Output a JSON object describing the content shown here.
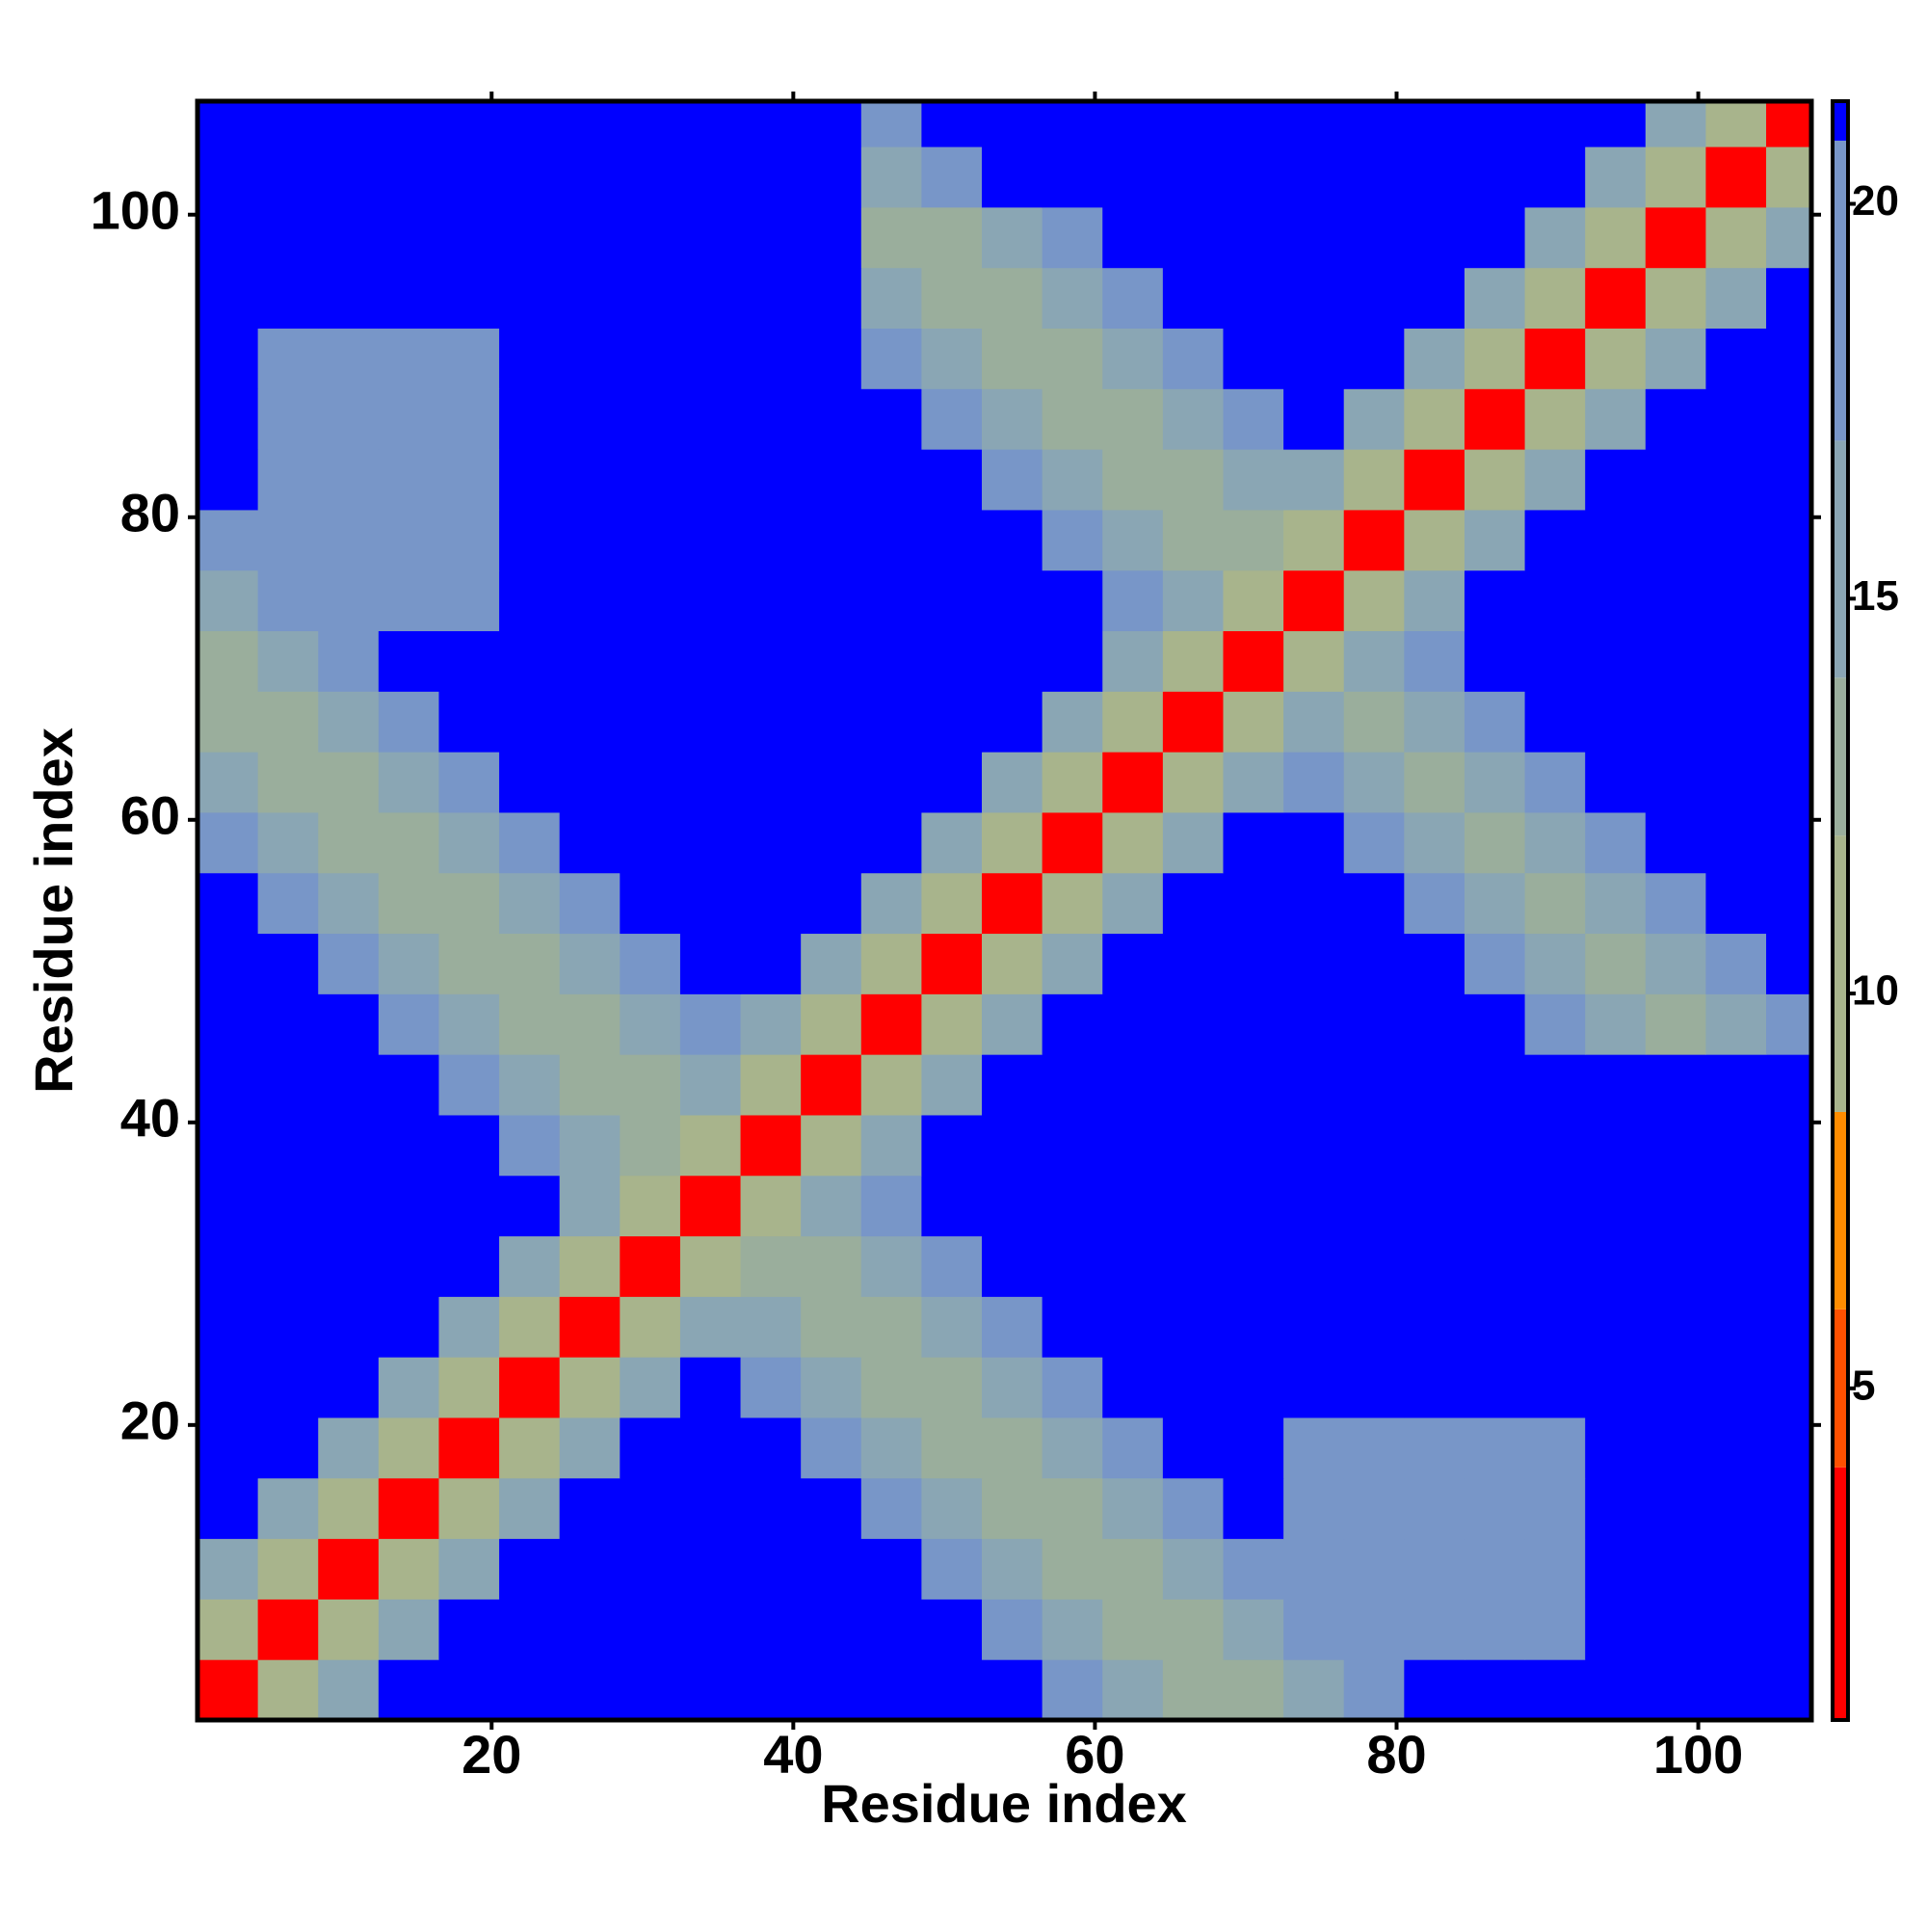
{
  "chart_data": {
    "type": "heatmap",
    "x_label": "Residue index",
    "y_label": "Residue index",
    "x": [
      2.5,
      6.5,
      10.5,
      14.5,
      18.5,
      22.5,
      26.5,
      30.5,
      34.5,
      38.5,
      42.5,
      46.5,
      50.5,
      54.5,
      58.5,
      62.5,
      66.5,
      70.5,
      74.5,
      78.5,
      82.5,
      86.5,
      90.5,
      94.5,
      98.5,
      102.5,
      106.5
    ],
    "y": [
      2.5,
      6.5,
      10.5,
      14.5,
      18.5,
      22.5,
      26.5,
      30.5,
      34.5,
      38.5,
      42.5,
      46.5,
      50.5,
      54.5,
      58.5,
      62.5,
      66.5,
      70.5,
      74.5,
      78.5,
      82.5,
      86.5,
      90.5,
      94.5,
      98.5,
      102.5,
      106.5
    ],
    "z": [
      [
        2,
        9,
        15,
        22,
        22,
        22,
        22,
        22,
        22,
        22,
        22,
        22,
        22,
        22,
        18,
        15,
        12,
        12,
        15,
        18,
        22,
        22,
        22,
        22,
        22,
        22,
        22
      ],
      [
        9,
        2,
        9,
        15,
        22,
        22,
        22,
        22,
        22,
        22,
        22,
        22,
        22,
        18,
        15,
        12,
        12,
        15,
        18,
        19,
        19,
        19,
        19,
        22,
        22,
        22,
        22
      ],
      [
        15,
        9,
        2,
        9,
        15,
        22,
        22,
        22,
        22,
        22,
        22,
        22,
        18,
        15,
        12,
        12,
        15,
        18,
        19,
        19,
        19,
        19,
        19,
        22,
        22,
        22,
        22
      ],
      [
        22,
        15,
        9,
        2,
        9,
        15,
        22,
        22,
        22,
        22,
        22,
        18,
        15,
        12,
        12,
        15,
        18,
        22,
        19,
        19,
        19,
        19,
        19,
        22,
        22,
        22,
        22
      ],
      [
        22,
        22,
        15,
        9,
        2,
        9,
        15,
        22,
        22,
        22,
        18,
        15,
        12,
        12,
        15,
        18,
        22,
        22,
        19,
        19,
        19,
        19,
        19,
        22,
        22,
        22,
        22
      ],
      [
        22,
        22,
        22,
        15,
        9,
        2,
        9,
        15,
        22,
        18,
        15,
        12,
        12,
        15,
        18,
        22,
        22,
        22,
        22,
        22,
        22,
        22,
        22,
        22,
        22,
        22,
        22
      ],
      [
        22,
        22,
        22,
        22,
        15,
        9,
        2,
        9,
        15,
        15,
        12,
        12,
        15,
        18,
        22,
        22,
        22,
        22,
        22,
        22,
        22,
        22,
        22,
        22,
        22,
        22,
        22
      ],
      [
        22,
        22,
        22,
        22,
        22,
        15,
        9,
        2,
        9,
        12,
        12,
        15,
        18,
        22,
        22,
        22,
        22,
        22,
        22,
        22,
        22,
        22,
        22,
        22,
        22,
        22,
        22
      ],
      [
        22,
        22,
        22,
        22,
        22,
        22,
        15,
        9,
        2,
        9,
        15,
        18,
        22,
        22,
        22,
        22,
        22,
        22,
        22,
        22,
        22,
        22,
        22,
        22,
        22,
        22,
        22
      ],
      [
        22,
        22,
        22,
        22,
        22,
        18,
        15,
        12,
        9,
        2,
        9,
        15,
        22,
        22,
        22,
        22,
        22,
        22,
        22,
        22,
        22,
        22,
        22,
        22,
        22,
        22,
        22
      ],
      [
        22,
        22,
        22,
        22,
        18,
        15,
        12,
        12,
        15,
        9,
        2,
        9,
        15,
        22,
        22,
        22,
        22,
        22,
        22,
        22,
        22,
        22,
        22,
        22,
        22,
        22,
        22
      ],
      [
        22,
        22,
        22,
        18,
        15,
        12,
        12,
        15,
        18,
        15,
        9,
        2,
        9,
        15,
        22,
        22,
        22,
        22,
        22,
        22,
        22,
        22,
        18,
        15,
        12,
        15,
        18
      ],
      [
        22,
        22,
        18,
        15,
        12,
        12,
        15,
        18,
        22,
        22,
        15,
        9,
        2,
        9,
        15,
        22,
        22,
        22,
        22,
        22,
        22,
        18,
        15,
        12,
        15,
        18,
        22
      ],
      [
        22,
        18,
        15,
        12,
        12,
        15,
        18,
        22,
        22,
        22,
        22,
        15,
        9,
        2,
        9,
        15,
        22,
        22,
        22,
        22,
        18,
        15,
        12,
        15,
        18,
        22,
        22
      ],
      [
        18,
        15,
        12,
        12,
        15,
        18,
        22,
        22,
        22,
        22,
        22,
        22,
        15,
        9,
        2,
        9,
        15,
        22,
        22,
        18,
        15,
        12,
        15,
        18,
        22,
        22,
        22
      ],
      [
        15,
        12,
        12,
        15,
        18,
        22,
        22,
        22,
        22,
        22,
        22,
        22,
        22,
        15,
        9,
        2,
        9,
        15,
        18,
        15,
        12,
        15,
        18,
        22,
        22,
        22,
        22
      ],
      [
        12,
        12,
        15,
        18,
        22,
        22,
        22,
        22,
        22,
        22,
        22,
        22,
        22,
        22,
        15,
        9,
        2,
        9,
        15,
        12,
        15,
        18,
        22,
        22,
        22,
        22,
        22
      ],
      [
        12,
        15,
        18,
        22,
        22,
        22,
        22,
        22,
        22,
        22,
        22,
        22,
        22,
        22,
        22,
        15,
        9,
        2,
        9,
        15,
        18,
        22,
        22,
        22,
        22,
        22,
        22
      ],
      [
        15,
        18,
        19,
        19,
        19,
        22,
        22,
        22,
        22,
        22,
        22,
        22,
        22,
        22,
        22,
        18,
        15,
        9,
        2,
        9,
        15,
        22,
        22,
        22,
        22,
        22,
        22
      ],
      [
        18,
        19,
        19,
        19,
        19,
        22,
        22,
        22,
        22,
        22,
        22,
        22,
        22,
        22,
        18,
        15,
        12,
        12,
        9,
        2,
        9,
        15,
        22,
        22,
        22,
        22,
        22
      ],
      [
        22,
        19,
        19,
        19,
        19,
        22,
        22,
        22,
        22,
        22,
        22,
        22,
        22,
        18,
        15,
        12,
        12,
        15,
        15,
        9,
        2,
        9,
        15,
        22,
        22,
        22,
        22
      ],
      [
        22,
        19,
        19,
        19,
        19,
        22,
        22,
        22,
        22,
        22,
        22,
        22,
        18,
        15,
        12,
        12,
        15,
        18,
        22,
        15,
        9,
        2,
        9,
        15,
        22,
        22,
        22
      ],
      [
        22,
        19,
        19,
        19,
        19,
        22,
        22,
        22,
        22,
        22,
        22,
        18,
        15,
        12,
        12,
        15,
        18,
        22,
        22,
        22,
        15,
        9,
        2,
        9,
        15,
        22,
        22
      ],
      [
        22,
        22,
        22,
        22,
        22,
        22,
        22,
        22,
        22,
        22,
        22,
        15,
        12,
        12,
        15,
        18,
        22,
        22,
        22,
        22,
        22,
        15,
        9,
        2,
        9,
        15,
        22
      ],
      [
        22,
        22,
        22,
        22,
        22,
        22,
        22,
        22,
        22,
        22,
        22,
        12,
        12,
        15,
        18,
        22,
        22,
        22,
        22,
        22,
        22,
        22,
        15,
        9,
        2,
        9,
        15
      ],
      [
        22,
        22,
        22,
        22,
        22,
        22,
        22,
        22,
        22,
        22,
        22,
        15,
        18,
        22,
        22,
        22,
        22,
        22,
        22,
        22,
        22,
        22,
        22,
        15,
        9,
        2,
        9
      ],
      [
        22,
        22,
        22,
        22,
        22,
        22,
        22,
        22,
        22,
        22,
        22,
        18,
        22,
        22,
        22,
        22,
        22,
        22,
        22,
        22,
        22,
        22,
        22,
        22,
        15,
        9,
        2
      ]
    ],
    "xlim": [
      0.5,
      107.5
    ],
    "ylim": [
      0.5,
      107.5
    ],
    "xticks": [
      20,
      40,
      60,
      80,
      100
    ],
    "yticks": [
      20,
      40,
      60,
      80,
      100
    ],
    "clim": [
      0.8,
      21.3
    ],
    "cticks": [
      5,
      10,
      15,
      20
    ],
    "colorscale": [
      {
        "value": 0.8,
        "color": "#ff0000"
      },
      {
        "value": 4,
        "color": "#ff5000"
      },
      {
        "value": 6,
        "color": "#ff8c00"
      },
      {
        "value": 8.5,
        "color": "#a8b48c"
      },
      {
        "value": 12,
        "color": "#9aae9c"
      },
      {
        "value": 14,
        "color": "#8aa6b4"
      },
      {
        "value": 17,
        "color": "#7896c8"
      },
      {
        "value": 20.8,
        "color": "#0000ff"
      }
    ]
  }
}
